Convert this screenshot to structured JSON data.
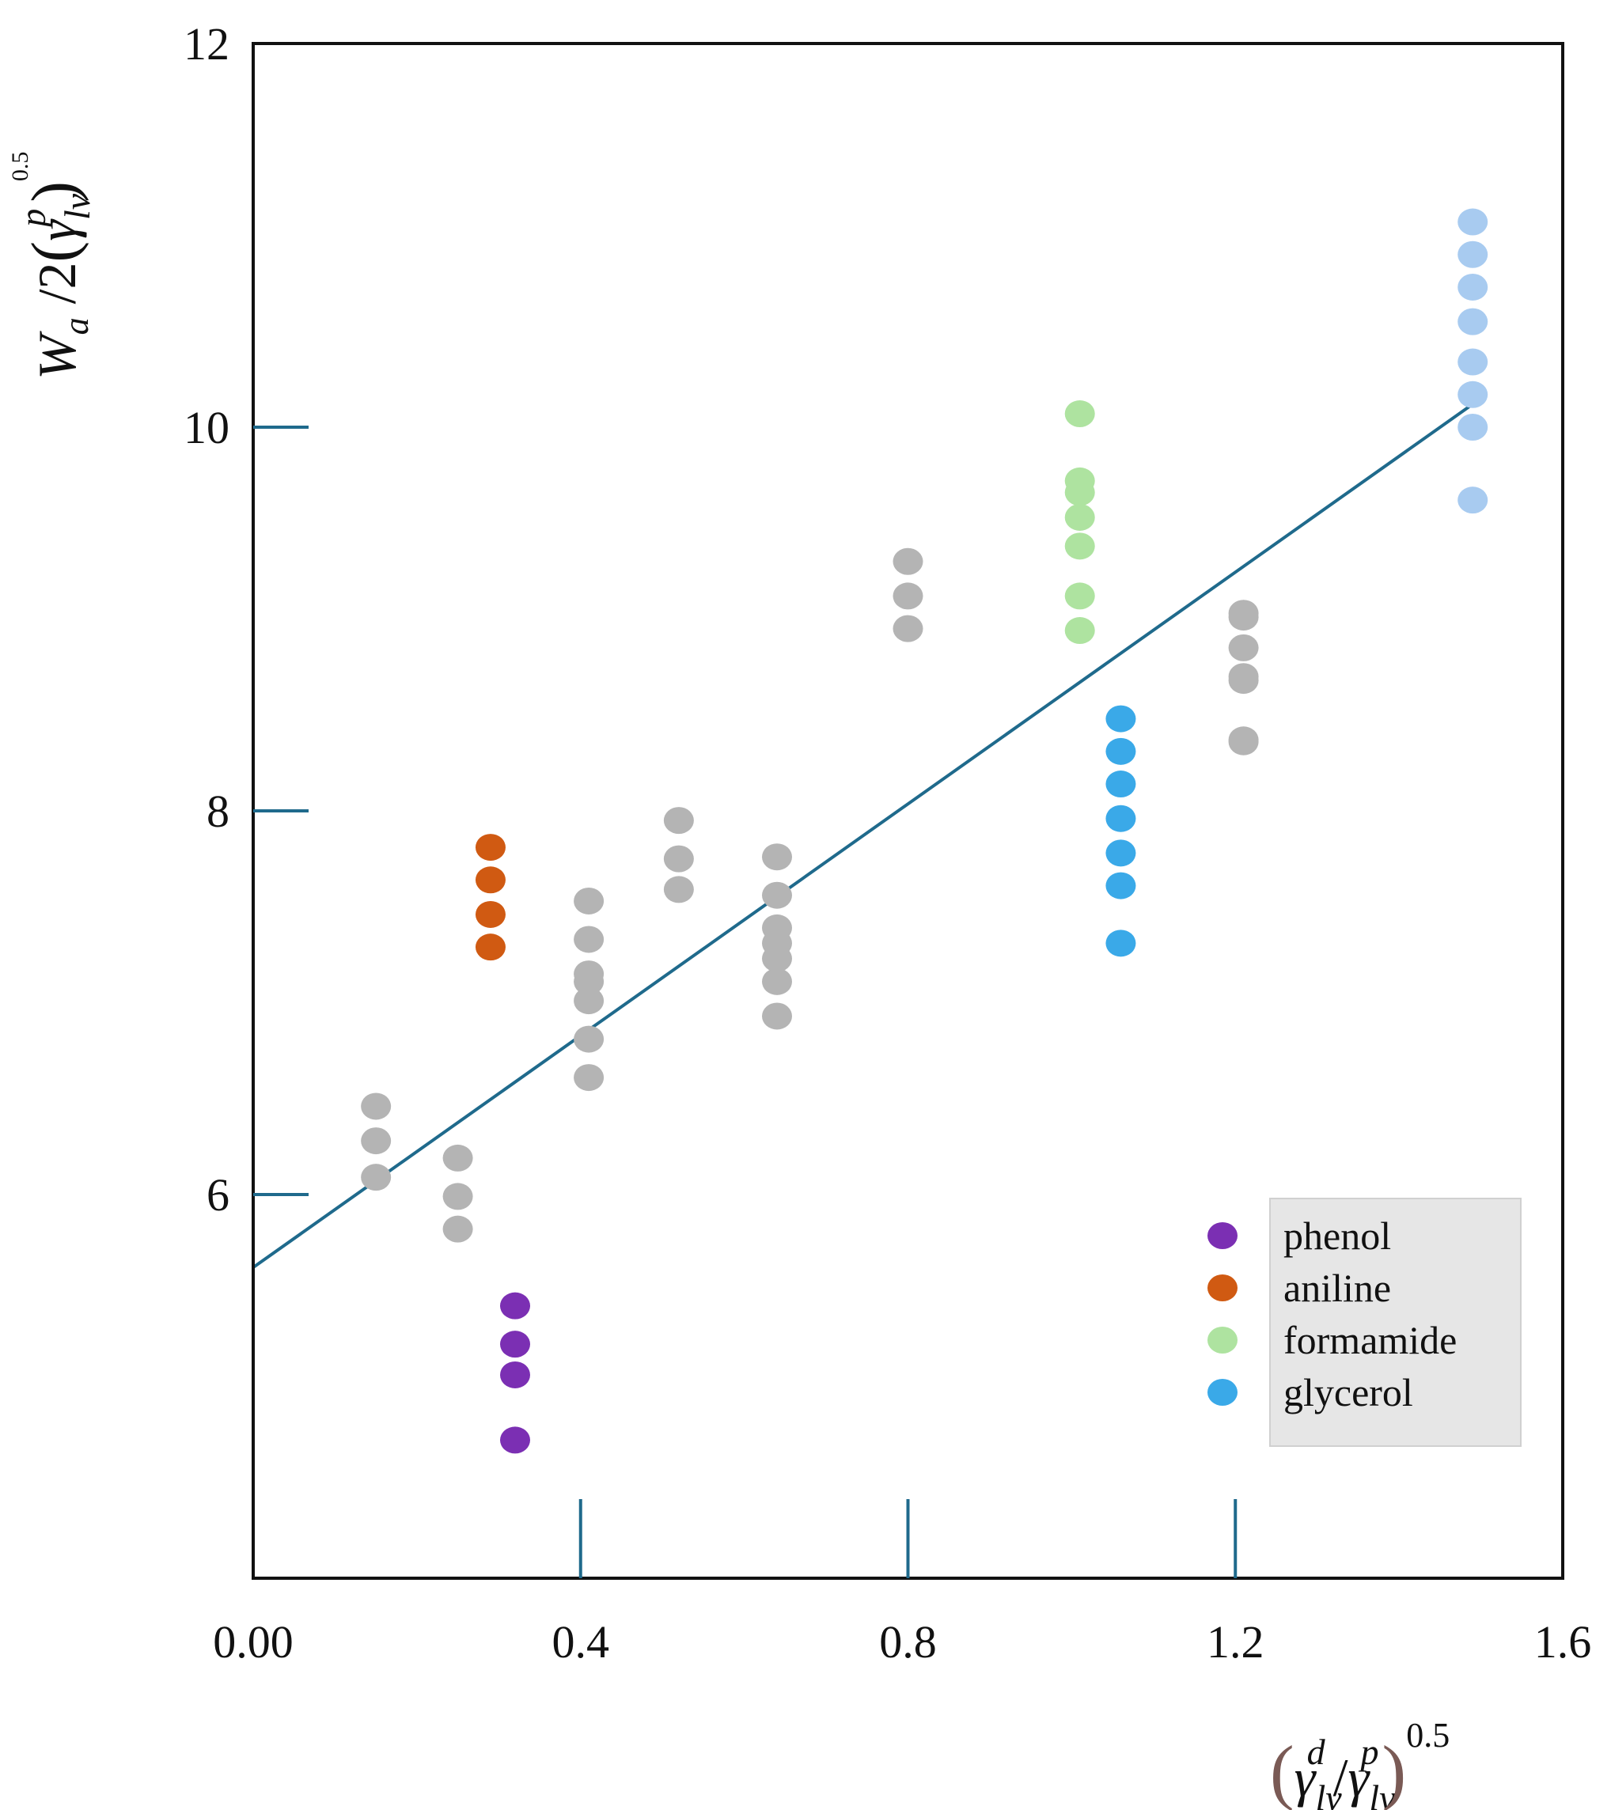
{
  "chart_data": {
    "type": "scatter",
    "title": "",
    "xlabel": "(γ_lv^d / γ_lv^p)^0.5",
    "ylabel": "W_a / 2(γ_lv^p)^0.5",
    "xlim": [
      0.0,
      1.6
    ],
    "ylim": [
      4.0,
      12.0
    ],
    "x_ticks": [
      0.0,
      0.4,
      0.8,
      1.2,
      1.6
    ],
    "x_tick_labels": [
      "0.00",
      "0.4",
      "0.8",
      "1.2",
      "1.6"
    ],
    "y_ticks": [
      6,
      8,
      10,
      12
    ],
    "y_tick_labels": [
      "6",
      "8",
      "10",
      "12"
    ],
    "legend_position": "bottom-right",
    "fit_line": {
      "color": "#1f6a8c",
      "x": [
        0.0,
        1.49
      ],
      "y": [
        5.62,
        10.12
      ]
    },
    "series": [
      {
        "name": "phenol",
        "in_legend": true,
        "color": "#7b2fb3",
        "x": [
          0.32,
          0.32,
          0.32,
          0.32
        ],
        "y": [
          5.42,
          5.22,
          5.06,
          4.72
        ]
      },
      {
        "name": "aniline",
        "in_legend": true,
        "color": "#d05a12",
        "x": [
          0.29,
          0.29,
          0.29,
          0.29
        ],
        "y": [
          7.81,
          7.64,
          7.46,
          7.29
        ]
      },
      {
        "name": "formamide",
        "in_legend": true,
        "color": "#aee3a0",
        "x": [
          1.01,
          1.01,
          1.01,
          1.01,
          1.01,
          1.01,
          1.01
        ],
        "y": [
          10.07,
          9.72,
          9.66,
          9.53,
          9.38,
          9.12,
          8.94
        ]
      },
      {
        "name": "glycerol",
        "in_legend": true,
        "color": "#3aa9e8",
        "x": [
          1.06,
          1.06,
          1.06,
          1.06,
          1.06,
          1.06,
          1.06
        ],
        "y": [
          8.48,
          8.31,
          8.14,
          7.96,
          7.78,
          7.61,
          7.31
        ]
      },
      {
        "name": "",
        "in_legend": false,
        "color": "#a8cbf0",
        "x": [
          1.49,
          1.49,
          1.49,
          1.49,
          1.49,
          1.49,
          1.49,
          1.49
        ],
        "y": [
          11.07,
          10.9,
          10.73,
          10.55,
          10.34,
          10.17,
          10.0,
          9.62
        ]
      },
      {
        "name": "",
        "in_legend": false,
        "color": "#b4b4b4",
        "x": [
          0.15,
          0.15,
          0.15,
          0.25,
          0.25,
          0.25,
          0.41,
          0.41,
          0.41,
          0.41,
          0.41,
          0.41,
          0.41,
          0.52,
          0.52,
          0.52,
          0.64,
          0.64,
          0.64,
          0.64,
          0.64,
          0.64,
          0.64,
          0.8,
          0.8,
          0.8,
          1.21,
          1.21,
          1.21,
          1.21,
          1.21,
          1.21,
          1.21
        ],
        "y": [
          6.46,
          6.28,
          6.09,
          6.19,
          5.99,
          5.82,
          7.53,
          7.33,
          7.15,
          7.01,
          6.81,
          6.61,
          7.11,
          7.95,
          7.75,
          7.59,
          7.76,
          7.56,
          7.39,
          7.31,
          7.11,
          6.93,
          7.23,
          9.3,
          9.12,
          8.95,
          9.03,
          8.85,
          8.68,
          8.37,
          9.01,
          8.7,
          8.36
        ]
      }
    ]
  }
}
